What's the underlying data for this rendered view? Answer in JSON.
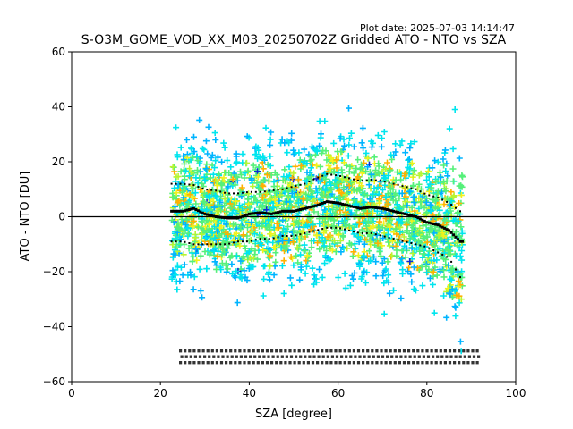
{
  "plot_date": "Plot date: 2025-07-03 14:14:47",
  "chart_data": {
    "type": "scatter",
    "title": "S-O3M_GOME_VOD_XX_M03_20250702Z Gridded ATO - NTO vs SZA",
    "xlabel": "SZA [degree]",
    "ylabel": "ATO - NTO [DU]",
    "xlim": [
      0,
      100
    ],
    "ylim": [
      -60,
      60
    ],
    "xticks": [
      0,
      20,
      40,
      60,
      80,
      100
    ],
    "yticks": [
      -60,
      -40,
      -20,
      0,
      20,
      40,
      60
    ],
    "grid": false,
    "zero_line": 0,
    "scatter_x_range": [
      22.5,
      88
    ],
    "colors": {
      "low_density": "#0a2bd6",
      "mid_low": "#00b4ff",
      "mid": "#00e5ee",
      "mid_high": "#55f07a",
      "high": "#b7f532",
      "higher": "#f2f21c",
      "highest": "#ffb000"
    },
    "mean": {
      "x": [
        22.5,
        25,
        27.5,
        30,
        32.5,
        35,
        37.5,
        40,
        42.5,
        45,
        47.5,
        50,
        52.5,
        55,
        57.5,
        60,
        62.5,
        65,
        67.5,
        70,
        72.5,
        75,
        77.5,
        80,
        82.5,
        85,
        87.5
      ],
      "y": [
        2,
        2,
        3,
        1,
        0,
        -0.5,
        -0.5,
        1,
        1.5,
        1,
        2,
        2,
        3,
        4,
        5.5,
        5,
        4,
        3,
        3.5,
        3,
        2,
        1,
        0,
        -2,
        -3,
        -5,
        -9
      ]
    },
    "upper_band": {
      "x": [
        22.5,
        25,
        27.5,
        30,
        32.5,
        35,
        37.5,
        40,
        42.5,
        45,
        47.5,
        50,
        52.5,
        55,
        57.5,
        60,
        62.5,
        65,
        67.5,
        70,
        72.5,
        75,
        77.5,
        80,
        82.5,
        85,
        87.5
      ],
      "y": [
        12,
        12,
        11.5,
        10,
        9.5,
        8.5,
        8.5,
        9,
        9,
        9.5,
        10,
        11,
        12,
        14,
        15.5,
        15,
        14,
        13,
        13.5,
        13,
        12,
        11,
        10,
        8,
        7,
        5,
        2
      ]
    },
    "lower_band": {
      "x": [
        22.5,
        25,
        27.5,
        30,
        32.5,
        35,
        37.5,
        40,
        42.5,
        45,
        47.5,
        50,
        52.5,
        55,
        57.5,
        60,
        62.5,
        65,
        67.5,
        70,
        72.5,
        75,
        77.5,
        80,
        82.5,
        85,
        87.5
      ],
      "y": [
        -9,
        -9,
        -10,
        -10,
        -10,
        -10,
        -9,
        -9,
        -8,
        -8,
        -7,
        -7,
        -6,
        -5,
        -4,
        -4,
        -5,
        -6,
        -6,
        -7,
        -8,
        -9,
        -10,
        -11,
        -13,
        -15,
        -22
      ]
    }
  }
}
